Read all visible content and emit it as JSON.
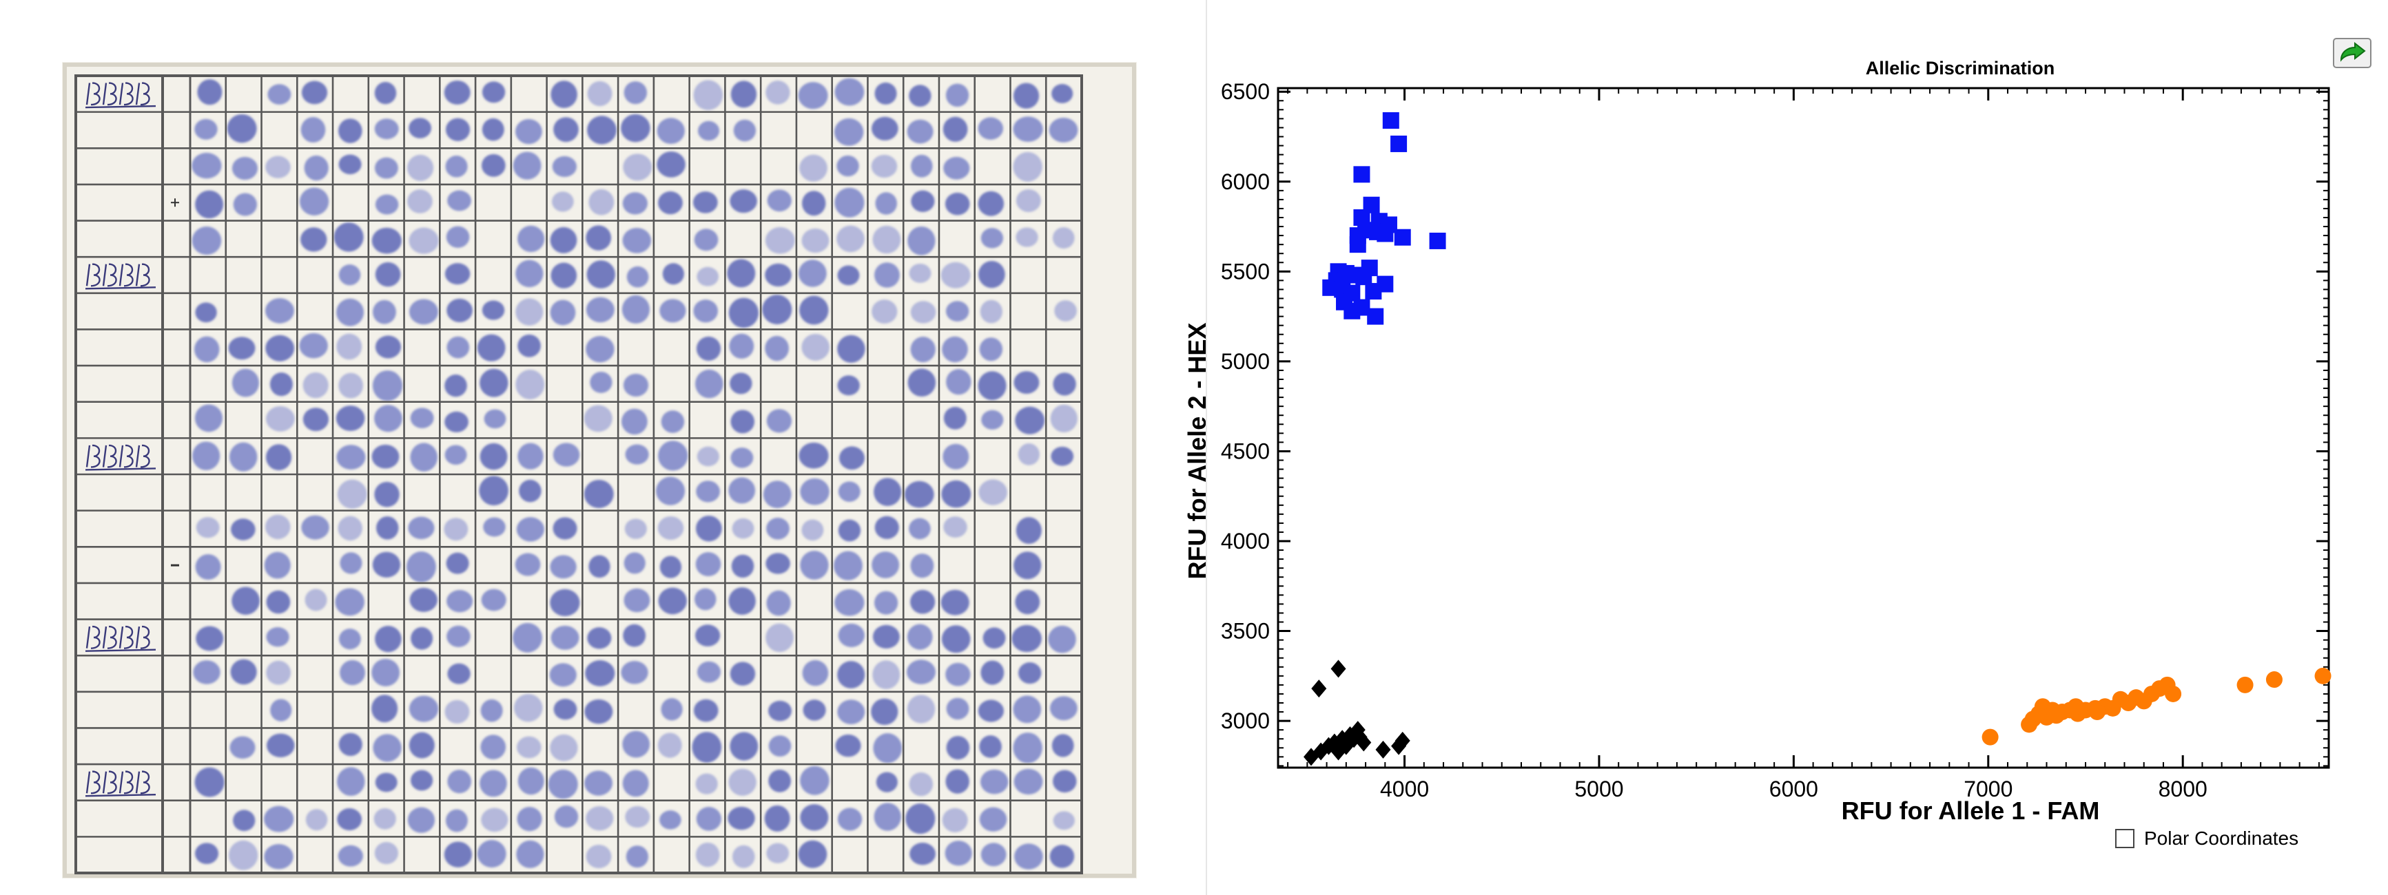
{
  "photo": {
    "row_labels": [
      "1307",
      "1360",
      "1361",
      "1364",
      "1365"
    ],
    "stray_marks": [
      "+",
      "-"
    ]
  },
  "chart_data": {
    "type": "scatter",
    "title": "Allelic Discrimination",
    "xlabel": "RFU for Allele 1 - FAM",
    "ylabel": "RFU for Allele 2 - HEX",
    "xlim": [
      3350,
      8750
    ],
    "ylim": [
      2740,
      6520
    ],
    "xticks": [
      4000,
      5000,
      6000,
      7000,
      8000
    ],
    "yticks": [
      3000,
      3500,
      4000,
      4500,
      5000,
      5500,
      6000,
      6500
    ],
    "grid": false,
    "series": [
      {
        "color": "#0a14f5",
        "marker": "square",
        "points": [
          [
            3930,
            6340
          ],
          [
            3970,
            6210
          ],
          [
            3780,
            6040
          ],
          [
            3830,
            5870
          ],
          [
            3780,
            5800
          ],
          [
            3870,
            5780
          ],
          [
            3920,
            5760
          ],
          [
            3800,
            5730
          ],
          [
            3860,
            5720
          ],
          [
            3900,
            5710
          ],
          [
            3760,
            5700
          ],
          [
            3990,
            5690
          ],
          [
            4170,
            5670
          ],
          [
            3760,
            5650
          ],
          [
            3820,
            5520
          ],
          [
            3660,
            5500
          ],
          [
            3700,
            5490
          ],
          [
            3740,
            5480
          ],
          [
            3790,
            5470
          ],
          [
            3650,
            5450
          ],
          [
            3900,
            5430
          ],
          [
            3620,
            5410
          ],
          [
            3680,
            5400
          ],
          [
            3730,
            5380
          ],
          [
            3840,
            5390
          ],
          [
            3690,
            5330
          ],
          [
            3780,
            5300
          ],
          [
            3730,
            5280
          ],
          [
            3850,
            5250
          ]
        ]
      },
      {
        "color": "#fe7b02",
        "marker": "circle",
        "points": [
          [
            7010,
            2910
          ],
          [
            7210,
            2980
          ],
          [
            7230,
            3010
          ],
          [
            7260,
            3040
          ],
          [
            7280,
            3080
          ],
          [
            7330,
            3060
          ],
          [
            7380,
            3050
          ],
          [
            7420,
            3060
          ],
          [
            7460,
            3040
          ],
          [
            7500,
            3060
          ],
          [
            7550,
            3070
          ],
          [
            7300,
            3020
          ],
          [
            7350,
            3030
          ],
          [
            7450,
            3080
          ],
          [
            7600,
            3080
          ],
          [
            7640,
            3070
          ],
          [
            7680,
            3120
          ],
          [
            7720,
            3100
          ],
          [
            7760,
            3130
          ],
          [
            7800,
            3110
          ],
          [
            7840,
            3150
          ],
          [
            7880,
            3180
          ],
          [
            7920,
            3200
          ],
          [
            7950,
            3150
          ],
          [
            7560,
            3050
          ],
          [
            8320,
            3200
          ],
          [
            8470,
            3230
          ],
          [
            8720,
            3250
          ]
        ]
      },
      {
        "color": "#000000",
        "marker": "diamond",
        "points": [
          [
            3660,
            3290
          ],
          [
            3560,
            3180
          ],
          [
            3520,
            2800
          ],
          [
            3570,
            2830
          ],
          [
            3610,
            2860
          ],
          [
            3640,
            2880
          ],
          [
            3680,
            2900
          ],
          [
            3720,
            2920
          ],
          [
            3760,
            2950
          ],
          [
            3740,
            2900
          ],
          [
            3790,
            2880
          ],
          [
            3890,
            2840
          ],
          [
            3970,
            2860
          ],
          [
            3990,
            2890
          ],
          [
            3660,
            2830
          ],
          [
            3700,
            2860
          ],
          [
            3770,
            2910
          ]
        ]
      }
    ]
  },
  "controls": {
    "polar_label": "Polar Coordinates",
    "export_icon": "export-arrow-icon"
  }
}
